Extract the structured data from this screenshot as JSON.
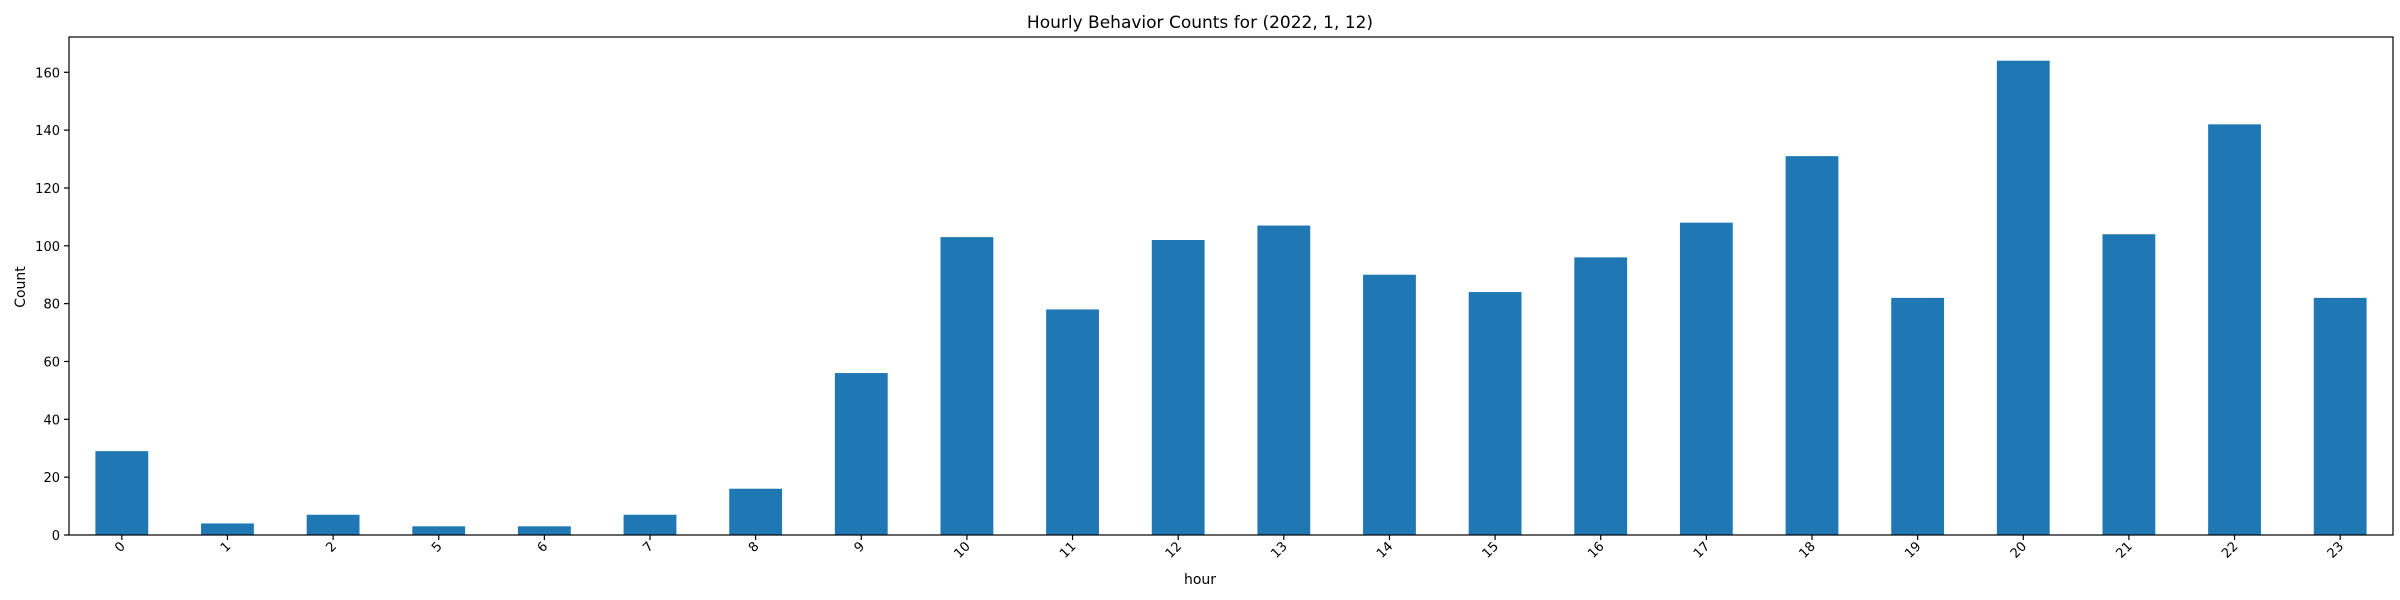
{
  "chart_data": {
    "type": "bar",
    "title": "Hourly Behavior Counts for (2022, 1, 12)",
    "xlabel": "hour",
    "ylabel": "Count",
    "categories": [
      "0",
      "1",
      "2",
      "5",
      "6",
      "7",
      "8",
      "9",
      "10",
      "11",
      "12",
      "13",
      "14",
      "15",
      "16",
      "17",
      "18",
      "19",
      "20",
      "21",
      "22",
      "23"
    ],
    "values": [
      29,
      4,
      7,
      3,
      3,
      7,
      16,
      56,
      103,
      78,
      102,
      107,
      90,
      84,
      96,
      108,
      131,
      82,
      164,
      104,
      142,
      82
    ],
    "ylim": [
      0,
      172.2
    ],
    "yticks": [
      0,
      20,
      40,
      60,
      80,
      100,
      120,
      140,
      160
    ],
    "grid": false,
    "legend": "none",
    "bar_color": "#1f77b4"
  }
}
